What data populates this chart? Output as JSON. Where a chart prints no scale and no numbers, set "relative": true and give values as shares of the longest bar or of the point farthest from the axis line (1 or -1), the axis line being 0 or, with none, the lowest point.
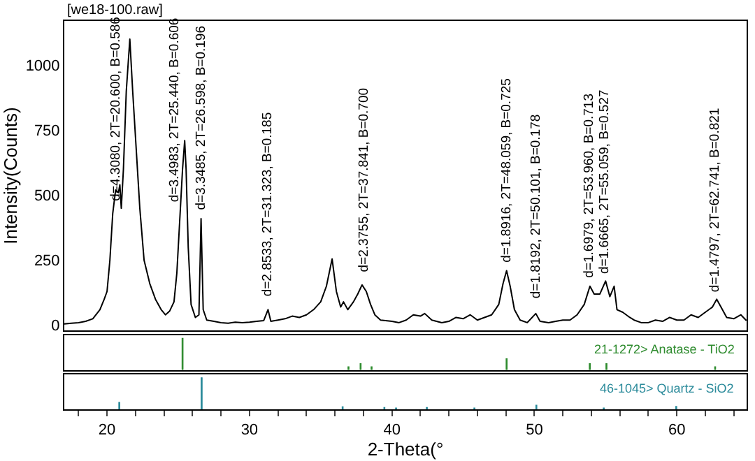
{
  "chart_data": [
    {
      "type": "line",
      "title": "[we18-100.raw]",
      "ylabel": "Intensity(Counts)",
      "xlim": [
        17,
        64.9
      ],
      "ylim": [
        -20,
        1170
      ],
      "yticks": [
        0,
        250,
        500,
        750,
        1000
      ],
      "tick_labels": "y",
      "marker": "none",
      "line_style": "solid",
      "series": [
        {
          "color": "#000000",
          "x": [
            17.0,
            17.5,
            18.0,
            18.5,
            19.0,
            19.5,
            19.8,
            20.0,
            20.2,
            20.4,
            20.6,
            20.8,
            20.9,
            21.0,
            21.15,
            21.35,
            21.6,
            21.8,
            22.0,
            22.3,
            22.6,
            23.0,
            23.4,
            23.8,
            24.1,
            24.4,
            24.7,
            24.9,
            25.1,
            25.3,
            25.45,
            25.55,
            25.7,
            25.9,
            26.2,
            26.45,
            26.6,
            26.75,
            27.0,
            27.5,
            28.0,
            28.5,
            29.0,
            29.5,
            30.0,
            30.5,
            31.0,
            31.3,
            31.5,
            32.0,
            32.5,
            33.0,
            33.5,
            34.0,
            34.5,
            35.0,
            35.4,
            35.8,
            36.1,
            36.4,
            36.6,
            36.9,
            37.3,
            37.6,
            37.9,
            38.2,
            38.5,
            38.8,
            39.2,
            40.0,
            40.5,
            41.0,
            41.5,
            42.0,
            42.3,
            42.8,
            43.5,
            44.0,
            44.5,
            45.0,
            45.5,
            46.0,
            46.5,
            47.0,
            47.5,
            47.8,
            48.05,
            48.3,
            48.6,
            49.0,
            49.5,
            50.1,
            50.4,
            51.0,
            51.5,
            52.0,
            52.5,
            53.0,
            53.5,
            53.9,
            54.2,
            54.6,
            55.0,
            55.3,
            55.6,
            55.8,
            56.2,
            56.7,
            57.0,
            57.5,
            58.0,
            58.5,
            59.0,
            59.5,
            60.0,
            60.5,
            61.0,
            61.5,
            62.0,
            62.5,
            62.8,
            63.1,
            63.5,
            64.0,
            64.5,
            64.85
          ],
          "values": [
            5,
            8,
            10,
            15,
            25,
            60,
            100,
            130,
            250,
            430,
            520,
            510,
            540,
            450,
            600,
            900,
            1100,
            900,
            720,
            450,
            250,
            160,
            100,
            60,
            40,
            55,
            90,
            200,
            400,
            600,
            710,
            600,
            300,
            80,
            30,
            40,
            410,
            60,
            20,
            15,
            10,
            8,
            12,
            10,
            12,
            15,
            18,
            60,
            15,
            20,
            25,
            35,
            30,
            40,
            60,
            90,
            150,
            255,
            130,
            70,
            90,
            60,
            90,
            120,
            155,
            130,
            80,
            40,
            20,
            15,
            10,
            20,
            40,
            35,
            45,
            20,
            10,
            15,
            30,
            25,
            40,
            20,
            30,
            40,
            80,
            160,
            210,
            150,
            60,
            20,
            10,
            45,
            15,
            10,
            15,
            20,
            20,
            40,
            80,
            150,
            120,
            120,
            170,
            110,
            150,
            60,
            50,
            30,
            20,
            10,
            10,
            20,
            15,
            30,
            20,
            20,
            40,
            30,
            50,
            70,
            100,
            70,
            30,
            25,
            40,
            20
          ]
        }
      ],
      "annotations": [
        {
          "text": "d=4.3080, 2T=20.600, B=0.586",
          "x": 20.6,
          "y": 444
        },
        {
          "text": "d=3.4983, 2T=25.440, B=0.606",
          "x": 24.7,
          "y": 444
        },
        {
          "text": "d=3.3485, 2T=26.598, B=0.196",
          "x": 26.6,
          "y": 410
        },
        {
          "text": "d=2.8533, 2T=31.323, B=0.185",
          "x": 31.3,
          "y": 77
        },
        {
          "text": "d=2.3755, 2T=37.841, B=0.700",
          "x": 38.1,
          "y": 172
        },
        {
          "text": "d=1.8916, 2T=48.059, B=0.725",
          "x": 48.05,
          "y": 211
        },
        {
          "text": "d=1.8192, 2T=50.101, B=0.178",
          "x": 50.1,
          "y": 72
        },
        {
          "text": "d=1.6979, 2T=53.960, B=0.713",
          "x": 53.9,
          "y": 150
        },
        {
          "text": "d=1.6665, 2T=55.059, B=0.527",
          "x": 55.0,
          "y": 166
        },
        {
          "text": "d=1.4797, 2T=62.741, B=0.821",
          "x": 62.7,
          "y": 93
        }
      ]
    },
    {
      "type": "bar",
      "relative": true,
      "xlim": [
        17,
        64.9
      ],
      "tick_labels": false,
      "x": [
        25.3,
        36.95,
        37.8,
        38.57,
        48.05,
        53.89,
        55.06,
        62.69
      ],
      "series": [
        {
          "color": "#2e8b2e",
          "values": [
            1,
            0.1,
            0.2,
            0.1,
            0.35,
            0.2,
            0.2,
            0.1
          ]
        }
      ],
      "annotations": [
        "21-1272> Anatase - TiO2"
      ]
    },
    {
      "type": "bar",
      "relative": true,
      "xlabel": "2-Theta(°",
      "xlim": [
        17,
        64.9
      ],
      "xticks": [
        {
          "value": 18,
          "label": null
        },
        20,
        {
          "value": 22,
          "label": null
        },
        {
          "value": 24,
          "label": null
        },
        {
          "value": 26,
          "label": null
        },
        {
          "value": 28,
          "label": null
        },
        30,
        {
          "value": 32,
          "label": null
        },
        {
          "value": 34,
          "label": null
        },
        {
          "value": 36,
          "label": null
        },
        {
          "value": 38,
          "label": null
        },
        40,
        {
          "value": 42,
          "label": null
        },
        {
          "value": 44,
          "label": null
        },
        {
          "value": 46,
          "label": null
        },
        {
          "value": 48,
          "label": null
        },
        50,
        {
          "value": 52,
          "label": null
        },
        {
          "value": 54,
          "label": null
        },
        {
          "value": 56,
          "label": null
        },
        {
          "value": 58,
          "label": null
        },
        60,
        {
          "value": 62,
          "label": null
        },
        {
          "value": 64,
          "label": null
        }
      ],
      "tick_labels": "x",
      "x": [
        20.86,
        26.64,
        36.54,
        39.47,
        40.29,
        42.45,
        45.79,
        50.14,
        54.87,
        59.96
      ],
      "series": [
        {
          "color": "#2a8a9a",
          "values": [
            0.22,
            1,
            0.08,
            0.06,
            0.04,
            0.06,
            0.04,
            0.13,
            0.04,
            0.09
          ]
        }
      ],
      "annotations": [
        "46-1045> Quartz - SiO2"
      ]
    }
  ]
}
